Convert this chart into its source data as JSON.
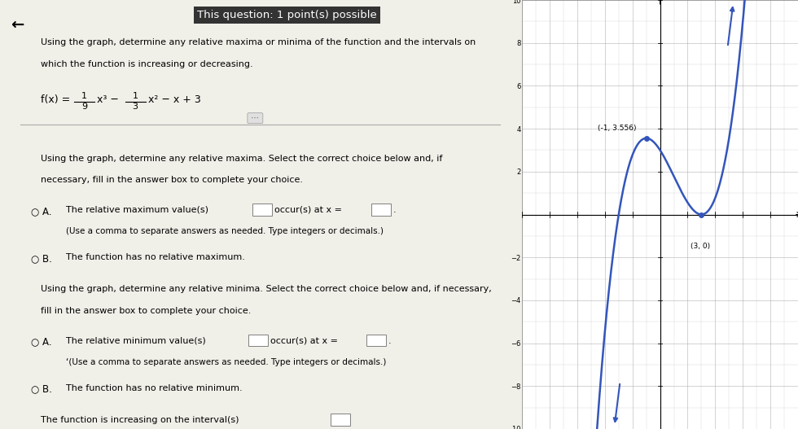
{
  "title_bar": "This question: 1 point(s) possible",
  "back_arrow": "←",
  "problem_text_line1": "Using the graph, determine any relative maxima or minima of the function and the intervals on",
  "problem_text_line2": "which the function is increasing or decreasing.",
  "section1_line1": "Using the graph, determine any relative maxima. Select the correct choice below and, if",
  "section1_line2": "necessary, fill in the answer box to complete your choice.",
  "optB_max": "B.  The function has no relative maximum.",
  "section2_line1": "Using the graph, determine any relative minima. Select the correct choice below and, if necessary,",
  "section2_line2": "fill in the answer box to complete your choice.",
  "optB_min": "B.  The function has no relative minimum.",
  "annotation_max": "(-1, 3.556)",
  "annotation_min": "(3, 0)",
  "curve_color": "#3355bb",
  "panel_bg": "#f0efe8",
  "title_bg": "#333333",
  "title_color": "#ffffff",
  "graph_bg": "#ffffff",
  "grid_color": "#999999",
  "graph_xlim": [
    -10,
    10
  ],
  "graph_ylim": [
    -10,
    10
  ]
}
